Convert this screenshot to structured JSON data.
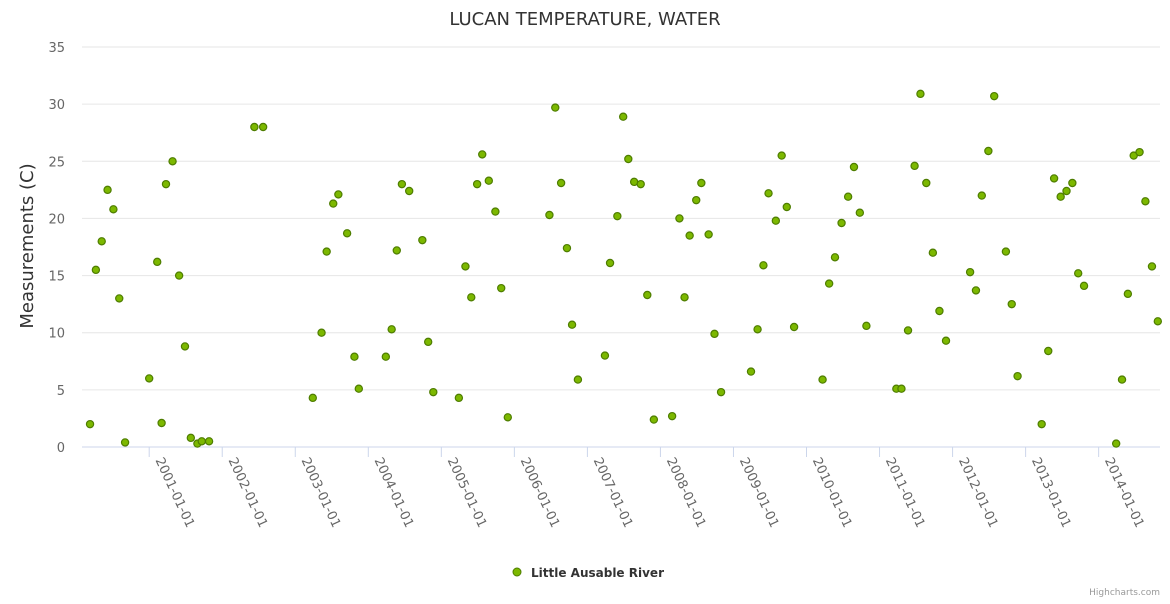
{
  "chart_data": {
    "type": "scatter",
    "title": "LUCAN TEMPERATURE, WATER",
    "xlabel": "",
    "ylabel": "Measurements (C)",
    "ylim": [
      0,
      35
    ],
    "yticks": [
      0,
      5,
      10,
      15,
      20,
      25,
      30,
      35
    ],
    "xlim": [
      2000.08,
      2014.84
    ],
    "xticks": [
      {
        "label": "2001-01-01",
        "value": 2001.0
      },
      {
        "label": "2002-01-01",
        "value": 2002.0
      },
      {
        "label": "2003-01-01",
        "value": 2003.0
      },
      {
        "label": "2004-01-01",
        "value": 2004.0
      },
      {
        "label": "2005-01-01",
        "value": 2005.0
      },
      {
        "label": "2006-01-01",
        "value": 2006.0
      },
      {
        "label": "2007-01-01",
        "value": 2007.0
      },
      {
        "label": "2008-01-01",
        "value": 2008.0
      },
      {
        "label": "2009-01-01",
        "value": 2009.0
      },
      {
        "label": "2010-01-01",
        "value": 2010.0
      },
      {
        "label": "2011-01-01",
        "value": 2011.0
      },
      {
        "label": "2012-01-01",
        "value": 2012.0
      },
      {
        "label": "2013-01-01",
        "value": 2013.0
      },
      {
        "label": "2014-01-01",
        "value": 2014.0
      }
    ],
    "grid": true,
    "legend_position": "bottom-center",
    "series": [
      {
        "name": "Little Ausable River",
        "color": "#7cb800",
        "stroke": "#4e7d00",
        "points": [
          [
            2000.19,
            2.0
          ],
          [
            2000.27,
            15.5
          ],
          [
            2000.35,
            18.0
          ],
          [
            2000.43,
            22.5
          ],
          [
            2000.51,
            20.8
          ],
          [
            2000.59,
            13.0
          ],
          [
            2000.67,
            0.4
          ],
          [
            2001.0,
            6.0
          ],
          [
            2001.11,
            16.2
          ],
          [
            2001.17,
            2.1
          ],
          [
            2001.23,
            23.0
          ],
          [
            2001.32,
            25.0
          ],
          [
            2001.41,
            15.0
          ],
          [
            2001.49,
            8.8
          ],
          [
            2001.57,
            0.8
          ],
          [
            2001.66,
            0.3
          ],
          [
            2001.72,
            0.5
          ],
          [
            2001.82,
            0.5
          ],
          [
            2002.44,
            28.0
          ],
          [
            2002.56,
            28.0
          ],
          [
            2003.24,
            4.3
          ],
          [
            2003.36,
            10.0
          ],
          [
            2003.43,
            17.1
          ],
          [
            2003.52,
            21.3
          ],
          [
            2003.59,
            22.1
          ],
          [
            2003.71,
            18.7
          ],
          [
            2003.81,
            7.9
          ],
          [
            2003.87,
            5.1
          ],
          [
            2004.24,
            7.9
          ],
          [
            2004.32,
            10.3
          ],
          [
            2004.39,
            17.2
          ],
          [
            2004.46,
            23.0
          ],
          [
            2004.56,
            22.4
          ],
          [
            2004.74,
            18.1
          ],
          [
            2004.82,
            9.2
          ],
          [
            2004.89,
            4.8
          ],
          [
            2005.24,
            4.3
          ],
          [
            2005.33,
            15.8
          ],
          [
            2005.41,
            13.1
          ],
          [
            2005.49,
            23.0
          ],
          [
            2005.56,
            25.6
          ],
          [
            2005.65,
            23.3
          ],
          [
            2005.74,
            20.6
          ],
          [
            2005.82,
            13.9
          ],
          [
            2005.91,
            2.6
          ],
          [
            2006.48,
            20.3
          ],
          [
            2006.56,
            29.7
          ],
          [
            2006.64,
            23.1
          ],
          [
            2006.72,
            17.4
          ],
          [
            2006.79,
            10.7
          ],
          [
            2006.87,
            5.9
          ],
          [
            2007.24,
            8.0
          ],
          [
            2007.31,
            16.1
          ],
          [
            2007.41,
            20.2
          ],
          [
            2007.49,
            28.9
          ],
          [
            2007.56,
            25.2
          ],
          [
            2007.64,
            23.2
          ],
          [
            2007.73,
            23.0
          ],
          [
            2007.82,
            13.3
          ],
          [
            2007.91,
            2.4
          ],
          [
            2008.16,
            2.7
          ],
          [
            2008.26,
            20.0
          ],
          [
            2008.33,
            13.1
          ],
          [
            2008.4,
            18.5
          ],
          [
            2008.49,
            21.6
          ],
          [
            2008.56,
            23.1
          ],
          [
            2008.66,
            18.6
          ],
          [
            2008.74,
            9.9
          ],
          [
            2008.83,
            4.8
          ],
          [
            2009.24,
            6.6
          ],
          [
            2009.33,
            10.3
          ],
          [
            2009.41,
            15.9
          ],
          [
            2009.48,
            22.2
          ],
          [
            2009.58,
            19.8
          ],
          [
            2009.66,
            25.5
          ],
          [
            2009.73,
            21.0
          ],
          [
            2009.83,
            10.5
          ],
          [
            2010.22,
            5.9
          ],
          [
            2010.31,
            14.3
          ],
          [
            2010.39,
            16.6
          ],
          [
            2010.48,
            19.6
          ],
          [
            2010.57,
            21.9
          ],
          [
            2010.65,
            24.5
          ],
          [
            2010.73,
            20.5
          ],
          [
            2010.82,
            10.6
          ],
          [
            2011.23,
            5.1
          ],
          [
            2011.3,
            5.1
          ],
          [
            2011.39,
            10.2
          ],
          [
            2011.48,
            24.6
          ],
          [
            2011.56,
            30.9
          ],
          [
            2011.64,
            23.1
          ],
          [
            2011.73,
            17.0
          ],
          [
            2011.82,
            11.9
          ],
          [
            2011.91,
            9.3
          ],
          [
            2012.24,
            15.3
          ],
          [
            2012.32,
            13.7
          ],
          [
            2012.4,
            22.0
          ],
          [
            2012.49,
            25.9
          ],
          [
            2012.57,
            30.7
          ],
          [
            2012.73,
            17.1
          ],
          [
            2012.81,
            12.5
          ],
          [
            2012.89,
            6.2
          ],
          [
            2013.22,
            2.0
          ],
          [
            2013.31,
            8.4
          ],
          [
            2013.39,
            23.5
          ],
          [
            2013.48,
            21.9
          ],
          [
            2013.56,
            22.4
          ],
          [
            2013.64,
            23.1
          ],
          [
            2013.72,
            15.2
          ],
          [
            2013.8,
            14.1
          ],
          [
            2014.24,
            0.3
          ],
          [
            2014.32,
            5.9
          ],
          [
            2014.4,
            13.4
          ],
          [
            2014.48,
            25.5
          ],
          [
            2014.56,
            25.8
          ],
          [
            2014.64,
            21.5
          ],
          [
            2014.73,
            15.8
          ],
          [
            2014.81,
            11.0
          ]
        ]
      }
    ],
    "credit": "Highcharts.com"
  }
}
